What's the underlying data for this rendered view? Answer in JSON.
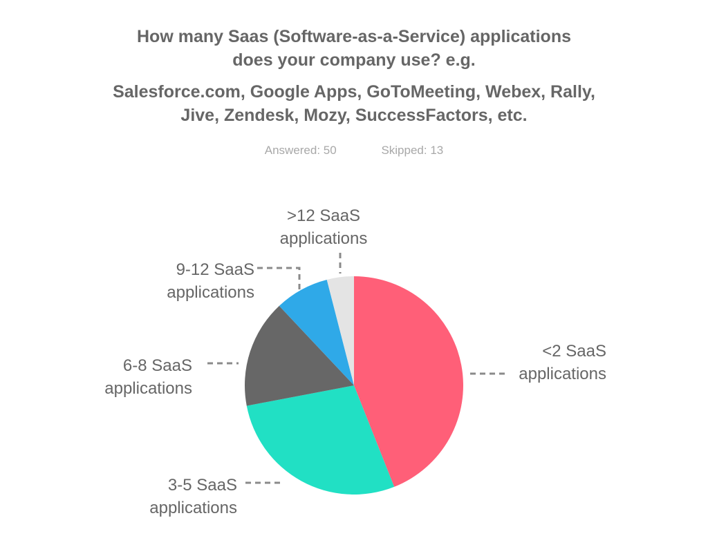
{
  "title": {
    "line1": "How many Saas (Software-as-a-Service) applications",
    "line2": "does your company use? e.g.",
    "line3": "Salesforce.com, Google Apps, GoToMeeting, Webex, Rally,",
    "line4": "Jive, Zendesk, Mozy, SuccessFactors, etc."
  },
  "stats": {
    "answered": "Answered: 50",
    "skipped": "Skipped: 13"
  },
  "chart_data": {
    "type": "pie",
    "start_angle": "12 o'clock",
    "direction": "clockwise",
    "slices": [
      {
        "label_lines": [
          "<2 SaaS",
          "applications"
        ],
        "value": 44,
        "color": "#ff5f78"
      },
      {
        "label_lines": [
          "3-5 SaaS",
          "applications"
        ],
        "value": 28,
        "color": "#21e0c4"
      },
      {
        "label_lines": [
          "6-8 SaaS",
          "applications"
        ],
        "value": 16,
        "color": "#676767"
      },
      {
        "label_lines": [
          "9-12 SaaS",
          "applications"
        ],
        "value": 8,
        "color": "#2fa9e8"
      },
      {
        "label_lines": [
          ">12 SaaS",
          "applications"
        ],
        "value": 4,
        "color": "#e4e4e4"
      }
    ]
  }
}
